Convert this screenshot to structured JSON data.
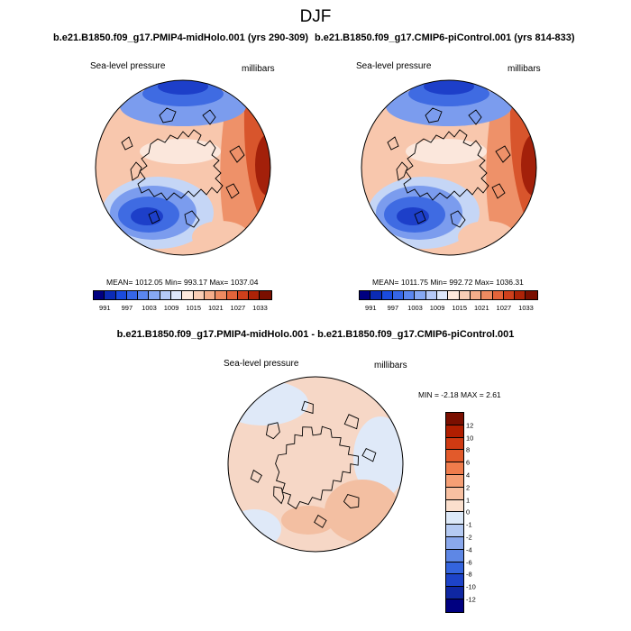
{
  "title": "DJF",
  "panel_a": {
    "case_title": "b.e21.B1850.f09_g17.PMIP4-midHolo.001 (yrs 290-309)",
    "variable": "Sea-level pressure",
    "units": "millibars",
    "stats": "MEAN= 1012.05   Min= 993.17   Max= 1037.04"
  },
  "panel_b": {
    "case_title": "b.e21.B1850.f09_g17.CMIP6-piControl.001 (yrs 814-833)",
    "variable": "Sea-level pressure",
    "units": "millibars",
    "stats": "MEAN= 1011.75   Min= 992.72   Max= 1036.31"
  },
  "diff_panel": {
    "title": "b.e21.B1850.f09_g17.PMIP4-midHolo.001 - b.e21.B1850.f09_g17.CMIP6-piControl.001",
    "variable": "Sea-level pressure",
    "units": "millibars",
    "stats": "MIN =  -2.18 MAX =    2.61"
  },
  "colorbar_abs": {
    "colors": [
      "#000080",
      "#0b2bb5",
      "#1a4bdd",
      "#3566e8",
      "#5a86ef",
      "#86a8f3",
      "#b5c9f7",
      "#dde7fb",
      "#fde9dd",
      "#f9cdb5",
      "#f4ad8a",
      "#ee8b61",
      "#e4643a",
      "#cf401c",
      "#ad2307",
      "#7a0f00"
    ],
    "tick_labels": [
      "991",
      "997",
      "1003",
      "1009",
      "1015",
      "1021",
      "1027",
      "1033"
    ]
  },
  "colorbar_diff": {
    "colors": [
      "#7a0f00",
      "#b01e00",
      "#cf3a12",
      "#e25a2b",
      "#ef7c4c",
      "#f59f75",
      "#f8c0a1",
      "#fbdfcd",
      "#dde9f8",
      "#b5caf2",
      "#8aa8ec",
      "#5e87e5",
      "#3464dd",
      "#1d43c8",
      "#0f27a2",
      "#000080"
    ],
    "tick_labels": [
      "12",
      "10",
      "8",
      "6",
      "4",
      "2",
      "1",
      "0",
      "-1",
      "-2",
      "-4",
      "-6",
      "-8",
      "-10",
      "-12"
    ]
  },
  "map_colors": {
    "high_dark": "#a3200a",
    "high": "#d8552c",
    "high_mid": "#ee9169",
    "high_light": "#f8c7ad",
    "neutral": "#fbe7dc",
    "low_light": "#c5d6f6",
    "low": "#7b9cee",
    "low_mid": "#3f6be2",
    "low_dark": "#1d3fc9",
    "diff_pos": "#f6d7c6",
    "diff_pos2": "#f3bfa2",
    "diff_neg": "#dfe9f8"
  }
}
